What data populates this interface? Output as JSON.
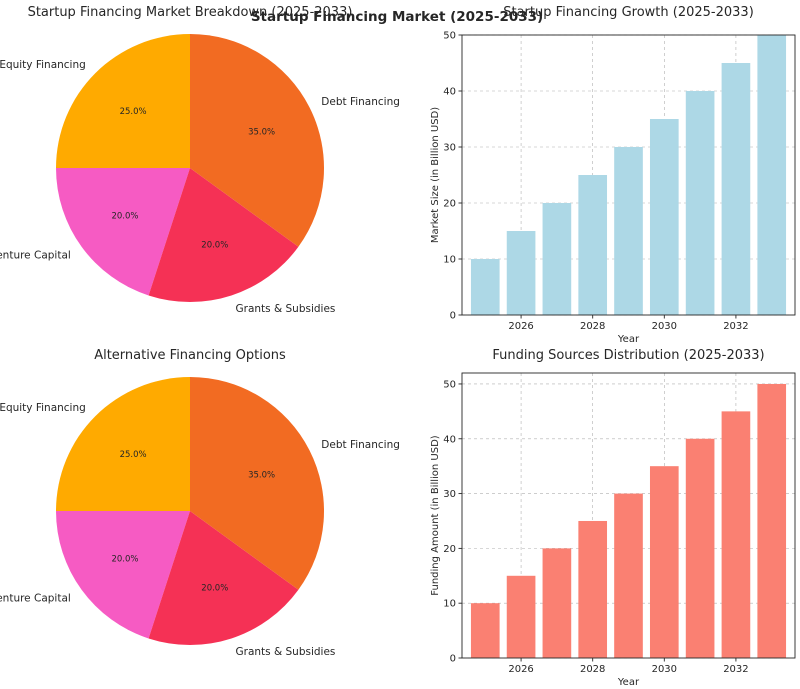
{
  "suptitle": "Startup Financing Market (2025-2033)",
  "chart_data": [
    {
      "type": "pie",
      "title": "Startup Financing Market Breakdown (2025-2033)",
      "labels": [
        "Equity Financing",
        "Venture Capital",
        "Grants & Subsidies",
        "Debt Financing"
      ],
      "values": [
        25.0,
        20.0,
        20.0,
        35.0
      ],
      "pct_labels": [
        "25.0%",
        "20.0%",
        "20.0%",
        "35.0%"
      ],
      "colors": [
        "#ffaa00",
        "#f65bc3",
        "#f53155",
        "#f26b22"
      ]
    },
    {
      "type": "bar",
      "title": "Startup Financing Growth (2025-2033)",
      "x": [
        2025,
        2026,
        2027,
        2028,
        2029,
        2030,
        2031,
        2032,
        2033
      ],
      "values": [
        10,
        15,
        20,
        25,
        30,
        35,
        40,
        45,
        50
      ],
      "xlabel": "Year",
      "ylabel": "Market Size (in Billion USD)",
      "xticks": [
        2026,
        2028,
        2030,
        2032
      ],
      "yticks": [
        0,
        10,
        20,
        30,
        40,
        50
      ],
      "xlim": [
        2024.35,
        2033.65
      ],
      "ylim": [
        0,
        50
      ],
      "grid": true,
      "color": "#add8e6"
    },
    {
      "type": "pie",
      "title": "Alternative Financing Options",
      "labels": [
        "Equity Financing",
        "Venture Capital",
        "Grants & Subsidies",
        "Debt Financing"
      ],
      "values": [
        25.0,
        20.0,
        20.0,
        35.0
      ],
      "pct_labels": [
        "25.0%",
        "20.0%",
        "20.0%",
        "35.0%"
      ],
      "colors": [
        "#ffaa00",
        "#f65bc3",
        "#f53155",
        "#f26b22"
      ]
    },
    {
      "type": "bar",
      "title": "Funding Sources Distribution (2025-2033)",
      "x": [
        2025,
        2026,
        2027,
        2028,
        2029,
        2030,
        2031,
        2032,
        2033
      ],
      "values": [
        10,
        15,
        20,
        25,
        30,
        35,
        40,
        45,
        50
      ],
      "xlabel": "Year",
      "ylabel": "Funding Amount (in Billion USD)",
      "xticks": [
        2026,
        2028,
        2030,
        2032
      ],
      "yticks": [
        0,
        10,
        20,
        30,
        40,
        50
      ],
      "xlim": [
        2024.35,
        2033.65
      ],
      "ylim": [
        0,
        52
      ],
      "grid": true,
      "color": "#fa8072"
    }
  ]
}
